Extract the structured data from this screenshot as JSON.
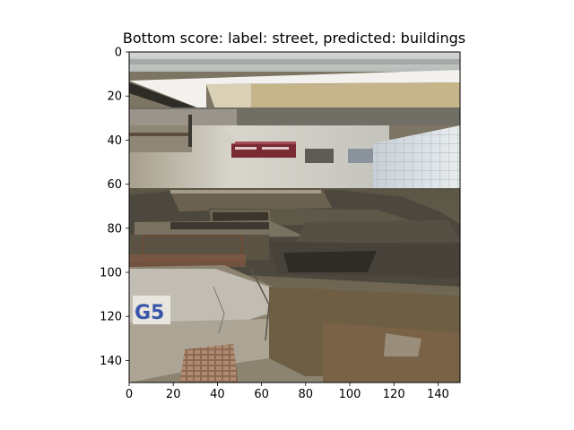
{
  "chart_data": {
    "type": "image",
    "title": "Bottom score: label: street, predicted: buildings",
    "xlabel": "",
    "ylabel": "",
    "xlim": [
      0,
      150
    ],
    "ylim": [
      150,
      0
    ],
    "xticks": [
      0,
      20,
      40,
      60,
      80,
      100,
      120,
      140
    ],
    "yticks": [
      0,
      20,
      40,
      60,
      80,
      100,
      120,
      140
    ],
    "image": {
      "description_icon": "photo-street-buildings",
      "colors": {
        "sky_band": "#cfd6d6",
        "awning": "#efefee",
        "awning_shadow": "#bfae86",
        "wall": "#c9c7bd",
        "tile_wall": "#d6dde3",
        "rubble_dark": "#4a463c",
        "rubble_mid": "#7a7260",
        "sign_red": "#7a2a32",
        "bricks": "#8a6a55",
        "graffiti_blue": "#3a56a8",
        "plaster": "#b3ab98"
      }
    }
  }
}
